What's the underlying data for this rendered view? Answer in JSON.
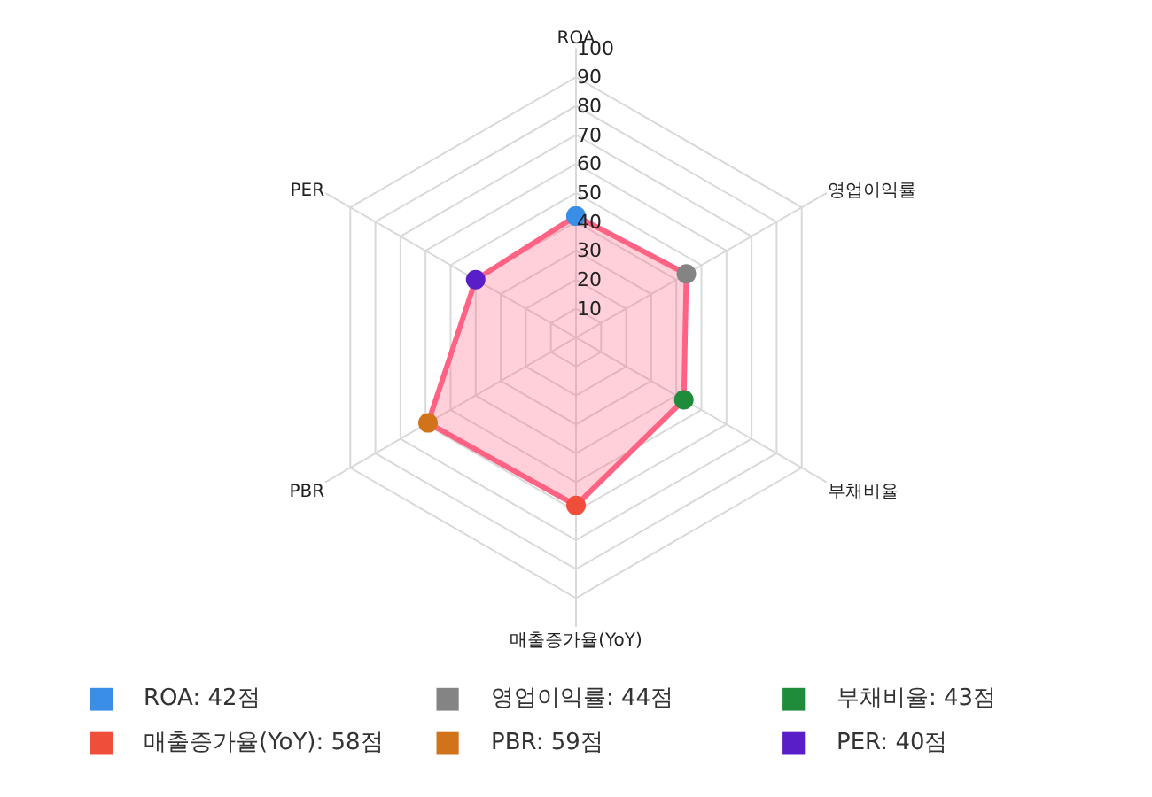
{
  "chart_data": {
    "type": "radar",
    "categories": [
      "ROA",
      "영업이익률",
      "부채비율",
      "매출증가율(YoY)",
      "PBR",
      "PER"
    ],
    "ylim": [
      0,
      100
    ],
    "yticks": [
      10,
      20,
      30,
      40,
      50,
      60,
      70,
      80,
      90,
      100
    ],
    "grid": true,
    "marker": "circle",
    "series": [
      {
        "color": "#ff6384",
        "colors": [
          "#3a8ee6",
          "#848484",
          "#1e8c3a",
          "#ef4f3a",
          "#d0731a",
          "#5a1ec8"
        ],
        "values": [
          42,
          44,
          43,
          58,
          59,
          40
        ]
      }
    ],
    "annotations": [
      "ROA: 42점",
      "영업이익률: 44점",
      "부채비율: 43점",
      "매출증가율(YoY): 58점",
      "PBR: 59점",
      "PER: 40점"
    ]
  }
}
